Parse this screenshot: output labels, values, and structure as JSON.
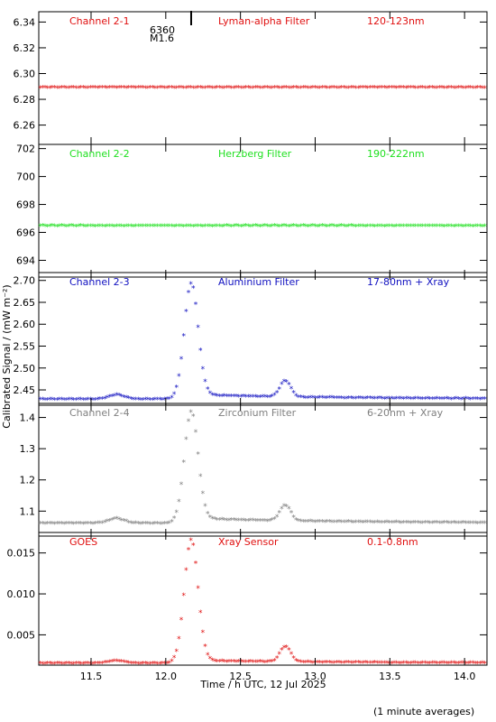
{
  "chart_data": {
    "type": "scatter",
    "xlabel": "Time / h UTC, 12 Jul 2025",
    "ylabel": "Calibrated Signal / (mW m⁻²)",
    "footnote": "(1 minute averages)",
    "xlim": [
      11.15,
      14.15
    ],
    "x_ticks": [
      "11.5",
      "12.0",
      "12.5",
      "13.0",
      "13.5",
      "14.0"
    ],
    "marker": "*",
    "panels": [
      {
        "channel": "Channel 2-1",
        "filter": "Lyman-alpha Filter",
        "band": "120-123nm",
        "color": "#e01010",
        "ylim": [
          6.245,
          6.348
        ],
        "y_ticks": [
          "6.26",
          "6.28",
          "6.30",
          "6.32",
          "6.34"
        ],
        "flare_marker": {
          "x": 12.17,
          "labels": [
            "6360",
            "M1.6"
          ]
        },
        "profile": {
          "base": 6.289
        }
      },
      {
        "channel": "Channel 2-2",
        "filter": "Herzberg Filter",
        "band": "190-222nm",
        "color": "#20e020",
        "ylim": [
          692.8,
          702.3
        ],
        "y_ticks": [
          "694",
          "696",
          "698",
          "700",
          "702"
        ],
        "profile": {
          "base": 696.45
        }
      },
      {
        "channel": "Channel 2-3",
        "filter": "Aluminium Filter",
        "band": "17-80nm + Xray",
        "color": "#1010c0",
        "ylim": [
          2.415,
          2.718
        ],
        "y_ticks": [
          "2.45",
          "2.50",
          "2.55",
          "2.60",
          "2.65",
          "2.70"
        ],
        "profile": {
          "base": 2.428,
          "bump": 0.01,
          "peak": 2.685,
          "decay": 2.438,
          "peak2": 2.465
        }
      },
      {
        "channel": "Channel 2-4",
        "filter": "Zirconium Filter",
        "band": "6-20nm + Xray",
        "color": "#808080",
        "ylim": [
          1.02,
          1.445
        ],
        "y_ticks": [
          "1.1",
          "1.2",
          "1.3",
          "1.4"
        ],
        "profile": {
          "base": 1.06,
          "bump": 0.015,
          "peak": 1.405,
          "decay": 1.075,
          "peak2": 1.11
        }
      },
      {
        "channel": "GOES",
        "filter": "Xray Sensor",
        "band": "0.1-0.8nm",
        "color": "#e01010",
        "ylim": [
          0.0013,
          0.0175
        ],
        "y_ticks": [
          "0.005",
          "0.010",
          "0.015"
        ],
        "profile": {
          "base": 0.0015,
          "bump": 0.0003,
          "peak": 0.0163,
          "decay": 0.0018,
          "peak2": 0.0034
        }
      }
    ]
  }
}
